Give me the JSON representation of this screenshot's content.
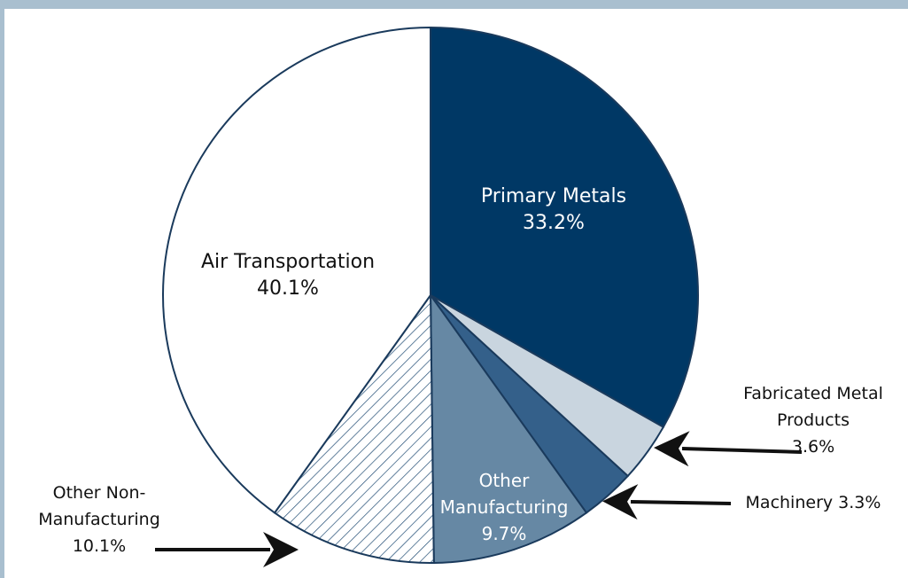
{
  "chart_data": {
    "type": "pie",
    "categories": [
      "Primary Metals",
      "Fabricated Metal Products",
      "Machinery",
      "Other Manufacturing",
      "Other Non-Manufacturing",
      "Air Transportation"
    ],
    "values": [
      33.2,
      3.6,
      3.3,
      9.7,
      10.1,
      40.1
    ],
    "value_labels": [
      "33.2%",
      "3.6%",
      "3.3%",
      "9.7%",
      "10.1%",
      "40.1%"
    ],
    "colors": [
      "#003865",
      "#c9d5df",
      "#34608a",
      "#6688a4",
      "#1f4b73",
      "#ffffff"
    ],
    "hatched": [
      false,
      false,
      false,
      false,
      true,
      false
    ]
  }
}
